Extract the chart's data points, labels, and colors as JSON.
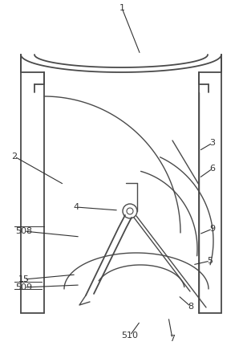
{
  "bg_color": "#ffffff",
  "line_color": "#4a4a4a",
  "lw": 1.0,
  "fig_width": 3.03,
  "fig_height": 4.41,
  "dpi": 100,
  "label_fs": 8,
  "label_color": "#333333"
}
